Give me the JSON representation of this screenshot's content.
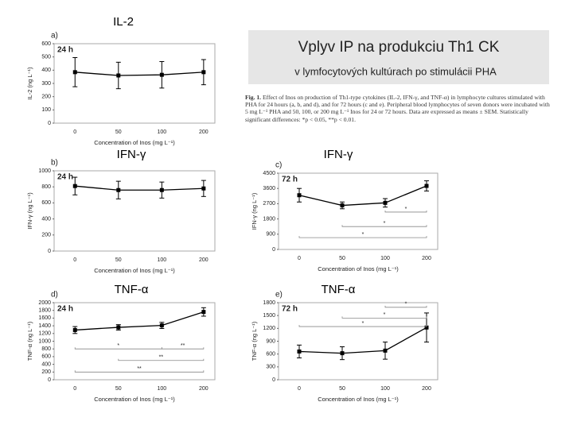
{
  "title": "Vplyv IP na produkciu Th1 CK",
  "subtitle": "v lymfocytových kultúrach po stimulácii PHA",
  "caption_label": "Fig. 1.",
  "caption": "Effect of Inos on production of Th1-type cytokines (IL-2, IFN-γ, and TNF-α) in lymphocyte cultures stimulated with PHA for 24 hours (a, b, and d), and for 72 hours (c and e). Peripheral blood lymphocytes of seven donors were incubated with 5 mg L⁻¹ PHA and 50, 100, or 200 mg L⁻¹ Inos for 24 or 72 hours. Data are expressed as means ± SEM. Statistically significant differences: *p < 0.05, **p < 0.01.",
  "chart_data": [
    {
      "type": "line",
      "header": "IL-2",
      "panel": "a)",
      "period": "24 h",
      "ylabel": "IL-2 (ng L⁻¹)",
      "xlabel": "Concentration of Inos (mg L⁻¹)",
      "color": "#000000",
      "categories": [
        "0",
        "50",
        "100",
        "200"
      ],
      "values": [
        385,
        360,
        365,
        385
      ],
      "errors": [
        110,
        100,
        100,
        95
      ],
      "ylim": [
        0,
        600
      ],
      "yticks": [
        0,
        100,
        200,
        300,
        400,
        500,
        600
      ],
      "annotations": []
    },
    {
      "type": "line",
      "header": "IFN-γ",
      "panel": "b)",
      "period": "24 h",
      "ylabel": "IFN-γ (ng L⁻¹)",
      "xlabel": "Concentration of Inos (mg L⁻¹)",
      "color": "#000000",
      "categories": [
        "0",
        "50",
        "100",
        "200"
      ],
      "values": [
        810,
        760,
        760,
        780
      ],
      "errors": [
        110,
        110,
        100,
        100
      ],
      "ylim": [
        0,
        1000
      ],
      "yticks": [
        0,
        200,
        400,
        600,
        800,
        1000
      ],
      "annotations": []
    },
    {
      "type": "line",
      "header": "IFN-γ",
      "panel": "c)",
      "period": "72 h",
      "ylabel": "IFN-γ (ng L⁻¹)",
      "xlabel": "Concentration of Inos (mg L⁻¹)",
      "color": "#000000",
      "categories": [
        "0",
        "50",
        "100",
        "200"
      ],
      "values": [
        3200,
        2600,
        2750,
        3750
      ],
      "errors": [
        400,
        200,
        250,
        300
      ],
      "ylim": [
        0,
        4500
      ],
      "yticks": [
        0,
        900,
        1800,
        2700,
        3600,
        4500
      ],
      "annotations": [
        "*",
        "*",
        "*"
      ]
    },
    {
      "type": "line",
      "header": "TNF-α",
      "panel": "d)",
      "period": "24 h",
      "ylabel": "TNF-α (ng L⁻¹)",
      "xlabel": "Concentration of Inos (mg L⁻¹)",
      "color": "#000000",
      "categories": [
        "0",
        "50",
        "100",
        "200"
      ],
      "values": [
        1290,
        1360,
        1410,
        1760
      ],
      "errors": [
        90,
        70,
        80,
        110
      ],
      "ylim": [
        0,
        2000
      ],
      "yticks": [
        0,
        200,
        400,
        600,
        800,
        1000,
        1200,
        1400,
        1600,
        1800,
        2000
      ],
      "annotations": [
        "*",
        "**",
        "**",
        "**"
      ]
    },
    {
      "type": "line",
      "header": "TNF-α",
      "panel": "e)",
      "period": "72 h",
      "ylabel": "TNF-α (ng L⁻¹)",
      "xlabel": "Concentration of Inos (mg L⁻¹)",
      "color": "#000000",
      "categories": [
        "0",
        "50",
        "100",
        "200"
      ],
      "values": [
        660,
        620,
        680,
        1220
      ],
      "errors": [
        150,
        150,
        200,
        340
      ],
      "ylim": [
        0,
        1800
      ],
      "yticks": [
        0,
        300,
        600,
        900,
        1200,
        1500,
        1800
      ],
      "annotations": [
        "*",
        "*",
        "*"
      ]
    }
  ]
}
